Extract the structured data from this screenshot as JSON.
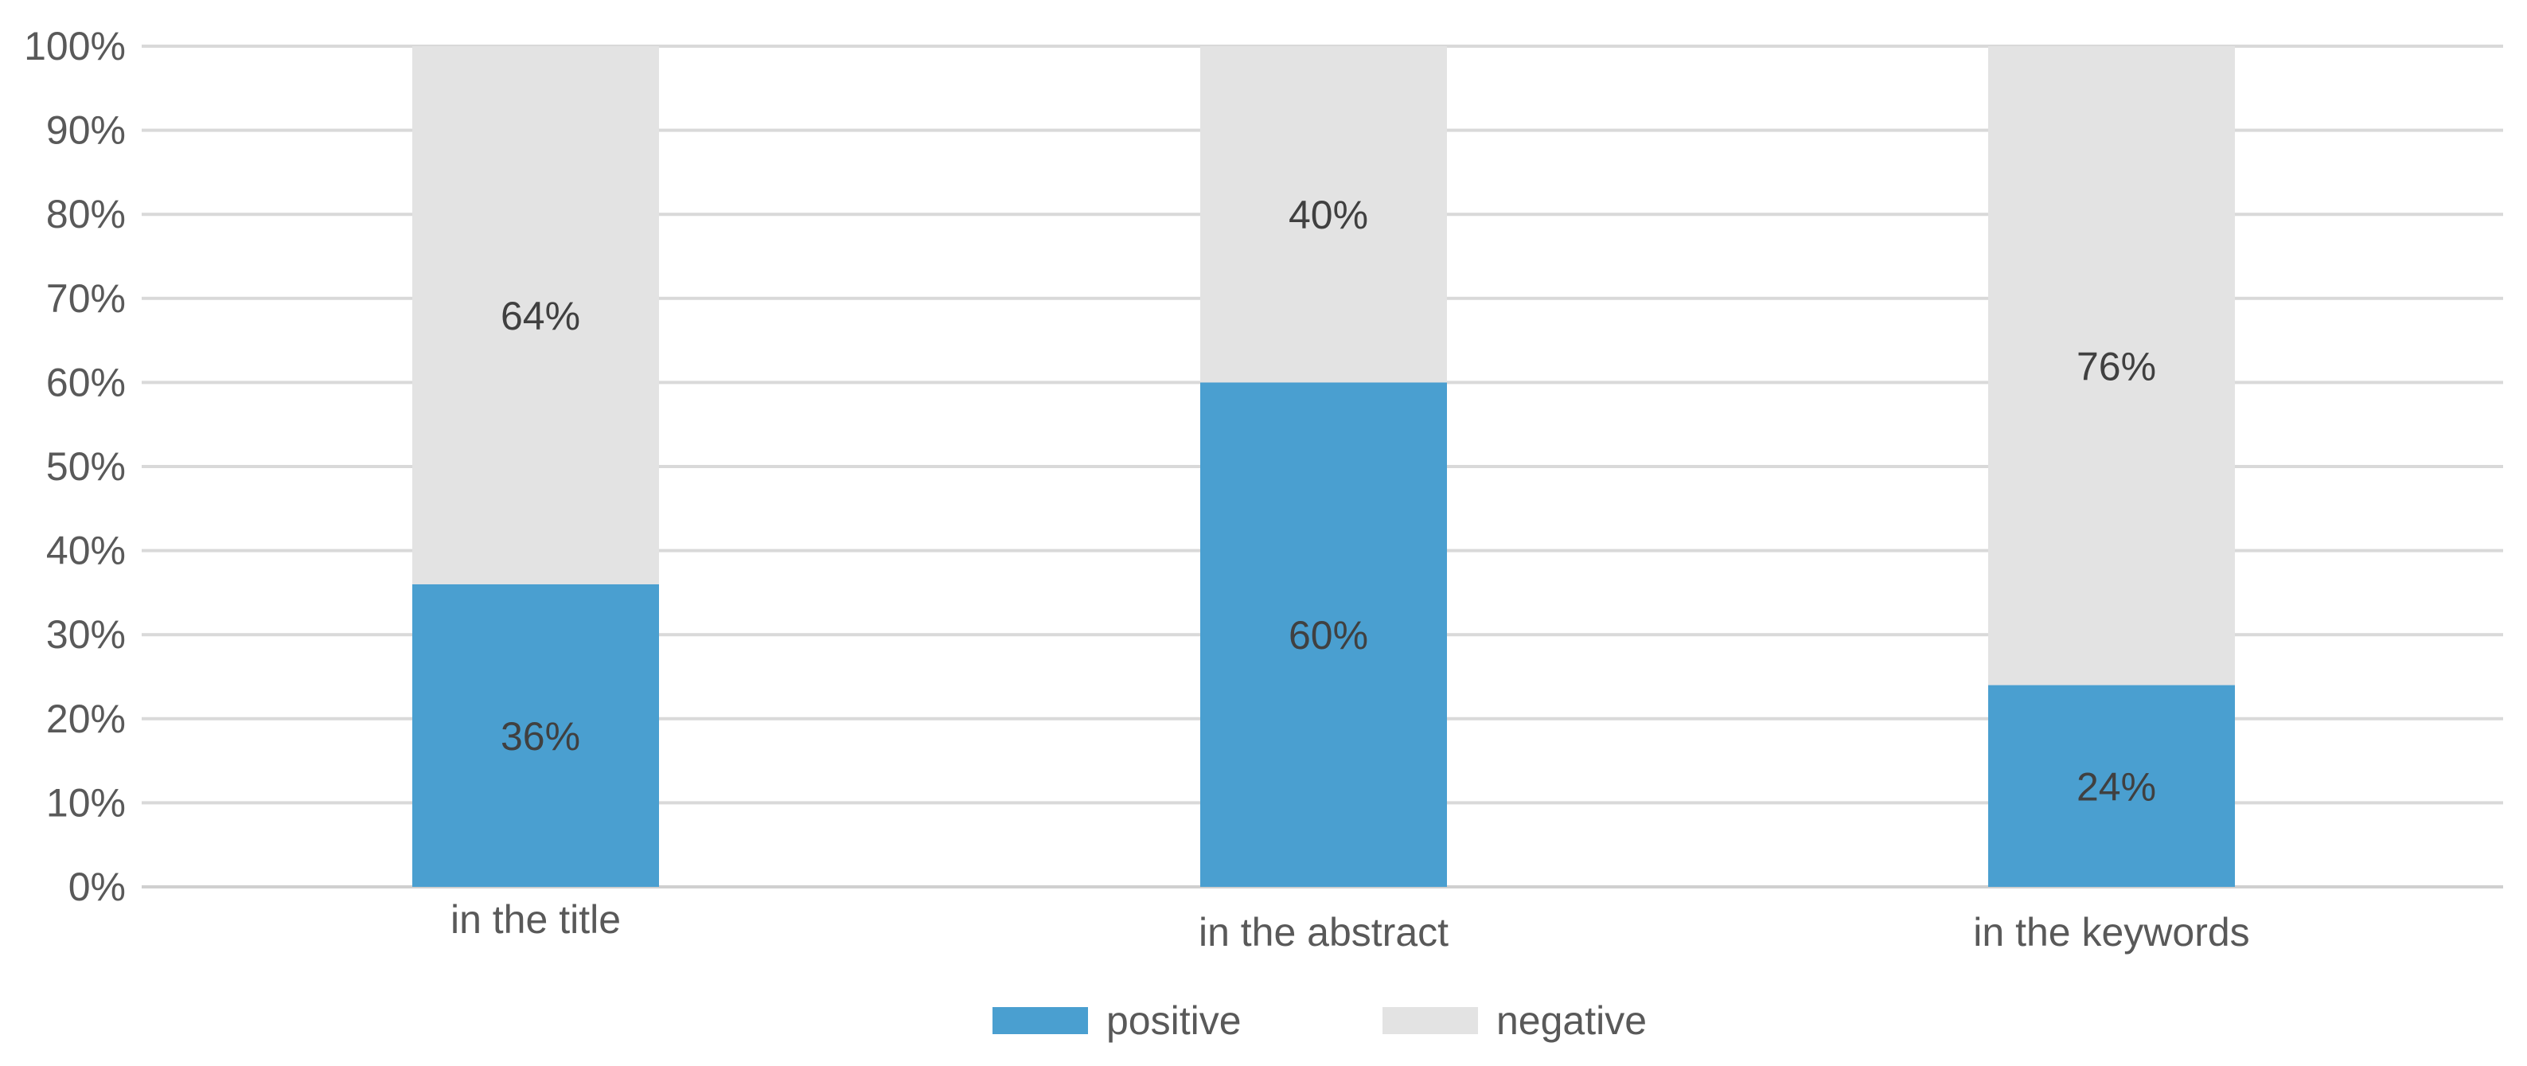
{
  "chart_data": {
    "type": "bar",
    "stacked": true,
    "categories": [
      "in the title",
      "in the abstract",
      "in the keywords"
    ],
    "series": [
      {
        "name": "positive",
        "values": [
          36,
          60,
          24
        ],
        "labels": [
          "36%",
          "60%",
          "24%"
        ],
        "color": "#4a9fd0"
      },
      {
        "name": "negative",
        "values": [
          64,
          40,
          76
        ],
        "labels": [
          "64%",
          "40%",
          "76%"
        ],
        "color": "#e3e3e3"
      }
    ],
    "ylim": [
      0,
      100
    ],
    "yticks": [
      "0%",
      "10%",
      "20%",
      "30%",
      "40%",
      "50%",
      "60%",
      "70%",
      "80%",
      "90%",
      "100%"
    ],
    "grid": true,
    "legend_position": "bottom"
  }
}
